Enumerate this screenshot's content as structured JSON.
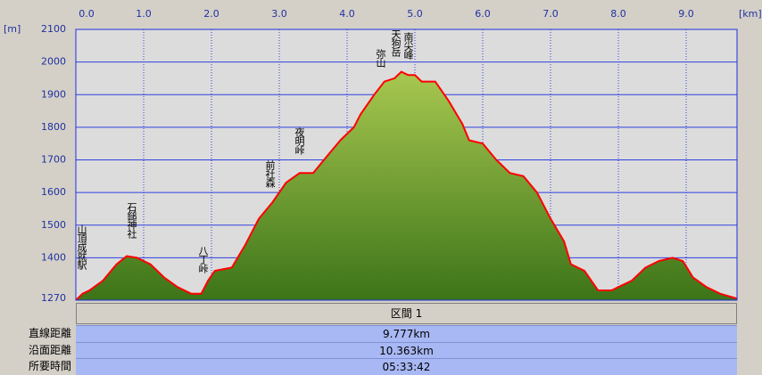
{
  "chart_data": {
    "type": "area",
    "x_unit": "[km]",
    "y_unit": "[m]",
    "xlim": [
      0,
      9.75
    ],
    "xticks": [
      {
        "value": 0,
        "label": "0.0"
      },
      {
        "value": 1,
        "label": "1.0"
      },
      {
        "value": 2,
        "label": "2.0"
      },
      {
        "value": 3,
        "label": "3.0"
      },
      {
        "value": 4,
        "label": "4.0"
      },
      {
        "value": 5,
        "label": "5.0"
      },
      {
        "value": 6,
        "label": "6.0"
      },
      {
        "value": 7,
        "label": "7.0"
      },
      {
        "value": 8,
        "label": "8.0"
      },
      {
        "value": 9,
        "label": "9.0"
      }
    ],
    "ylim": [
      1270,
      2100
    ],
    "yticks": [
      1270,
      1400,
      1500,
      1600,
      1700,
      1800,
      1900,
      2000,
      2100
    ],
    "grid": true,
    "x": [
      0.0,
      0.1,
      0.2,
      0.4,
      0.6,
      0.75,
      0.9,
      1.1,
      1.3,
      1.5,
      1.7,
      1.85,
      1.95,
      2.05,
      2.3,
      2.5,
      2.7,
      2.9,
      3.1,
      3.3,
      3.5,
      3.7,
      3.9,
      4.1,
      4.2,
      4.4,
      4.55,
      4.7,
      4.8,
      4.9,
      5.0,
      5.1,
      5.3,
      5.5,
      5.7,
      5.8,
      6.0,
      6.2,
      6.4,
      6.6,
      6.8,
      7.0,
      7.2,
      7.3,
      7.5,
      7.7,
      7.9,
      8.0,
      8.2,
      8.4,
      8.6,
      8.8,
      8.95,
      9.1,
      9.3,
      9.5,
      9.75
    ],
    "series": [
      {
        "color": "#ff0000",
        "values": [
          1270,
          1290,
          1300,
          1330,
          1380,
          1405,
          1400,
          1380,
          1340,
          1310,
          1290,
          1290,
          1330,
          1360,
          1370,
          1440,
          1520,
          1570,
          1630,
          1660,
          1660,
          1710,
          1760,
          1800,
          1840,
          1900,
          1940,
          1950,
          1970,
          1960,
          1960,
          1940,
          1940,
          1880,
          1810,
          1760,
          1750,
          1700,
          1660,
          1650,
          1600,
          1520,
          1450,
          1380,
          1360,
          1300,
          1300,
          1310,
          1330,
          1370,
          1390,
          1400,
          1390,
          1340,
          1310,
          1290,
          1275
        ]
      }
    ],
    "annotations": [
      "山頂成就駅",
      "石鎚神社",
      "八丁峠",
      "前社森",
      "夜明峠",
      "弥山",
      "天狗岳",
      "南尖峰"
    ]
  },
  "summary": {
    "header": "区間 1",
    "rows": [
      [
        "直線距離",
        "9.777km"
      ],
      [
        "沿面距離",
        "10.363km"
      ],
      [
        "所要時間",
        "05:33:42"
      ]
    ]
  }
}
